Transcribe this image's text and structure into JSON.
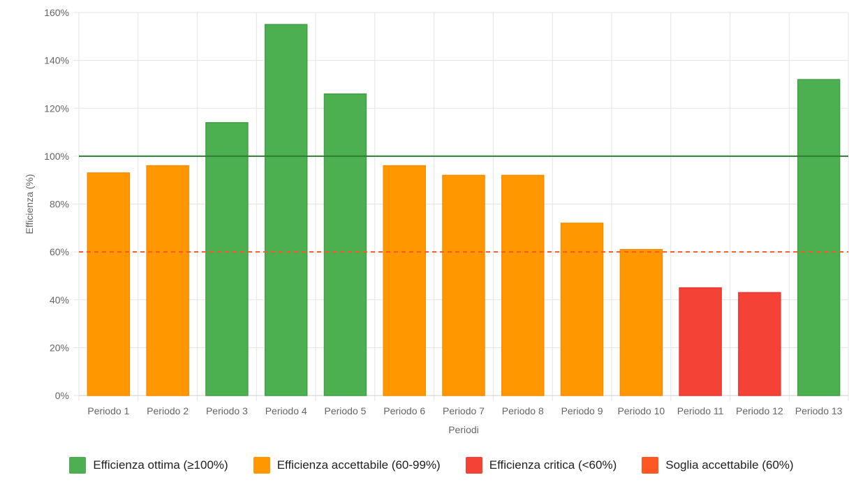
{
  "chart_data": {
    "type": "bar",
    "xlabel": "Periodi",
    "ylabel": "Efficienza (%)",
    "ylim": [
      0,
      160
    ],
    "y_ticks": [
      0,
      20,
      40,
      60,
      80,
      100,
      120,
      140,
      160
    ],
    "y_tick_suffix": "%",
    "grid": true,
    "legend_position": "bottom",
    "categories": [
      "Periodo 1",
      "Periodo 2",
      "Periodo 3",
      "Periodo 4",
      "Periodo 5",
      "Periodo 6",
      "Periodo 7",
      "Periodo 8",
      "Periodo 9",
      "Periodo 10",
      "Periodo 11",
      "Periodo 12",
      "Periodo 13"
    ],
    "values": [
      93,
      96,
      114,
      155,
      126,
      96,
      92,
      92,
      72,
      61,
      45,
      43,
      132
    ],
    "reference_lines": [
      {
        "value": 100,
        "color": "#2e7d32",
        "style": "solid"
      },
      {
        "value": 60,
        "color": "#ff5722",
        "style": "dashed"
      }
    ],
    "legend": [
      {
        "label": "Efficienza ottima (≥100%)",
        "color": "#4caf50"
      },
      {
        "label": "Efficienza accettabile (60-99%)",
        "color": "#ff9800"
      },
      {
        "label": "Efficienza critica (<60%)",
        "color": "#f44336"
      },
      {
        "label": "Soglia accettabile (60%)",
        "color": "#ff5722"
      }
    ],
    "color_rules": {
      "optimal_min": 100,
      "acceptable_min": 60,
      "optimal_color": "#4caf50",
      "optimal_border": "#43a047",
      "acceptable_color": "#ff9800",
      "acceptable_border": "#fb8c00",
      "critical_color": "#f44336",
      "critical_border": "#e53935"
    }
  }
}
